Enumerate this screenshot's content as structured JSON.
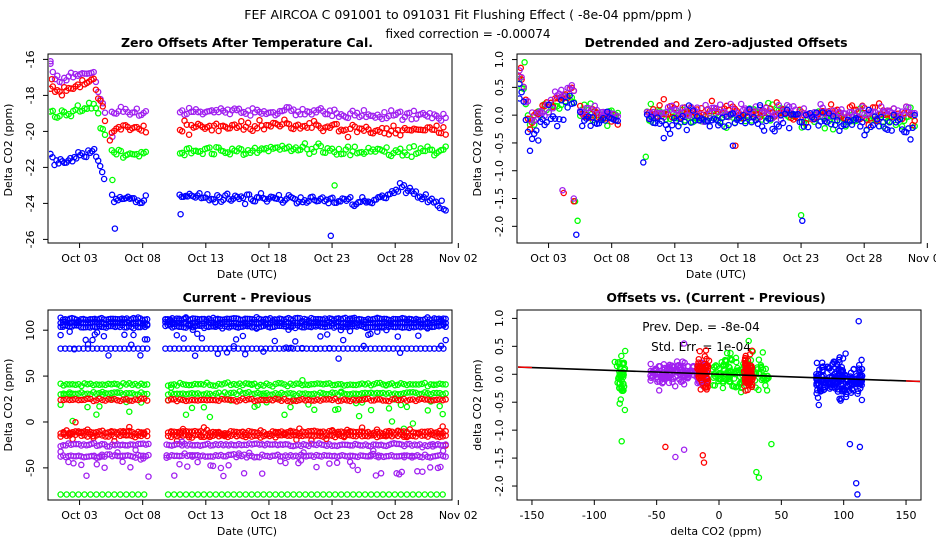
{
  "figure": {
    "title": "FEF   AIRCOA C   091001 to 091031   Fit Flushing Effect ( -8e-04 ppm/ppm )",
    "subtitle": "fixed correction = -0.00074"
  },
  "colors": {
    "blue": "#0000ff",
    "red": "#ff0000",
    "green": "#00ff00",
    "purple": "#a020f0",
    "fit_line": "#000000",
    "fit_line_ends": "#ff0000"
  },
  "chart_data": [
    {
      "id": "zero-offsets",
      "type": "scatter",
      "title": "Zero Offsets After Temperature Cal.",
      "xlabel": "Date (UTC)",
      "ylabel": "Delta CO2 (ppm)",
      "xlim": [
        0,
        32
      ],
      "ylim": [
        -26.2,
        -15.7
      ],
      "x_ticks": [
        {
          "v": 2.5,
          "label": "Oct 03"
        },
        {
          "v": 7.5,
          "label": "Oct 08"
        },
        {
          "v": 12.5,
          "label": "Oct 13"
        },
        {
          "v": 17.5,
          "label": "Oct 18"
        },
        {
          "v": 22.5,
          "label": "Oct 23"
        },
        {
          "v": 27.5,
          "label": "Oct 28"
        },
        {
          "v": 32.5,
          "label": "Nov 02"
        }
      ],
      "y_ticks": [
        {
          "v": -16,
          "label": "-16"
        },
        {
          "v": -18,
          "label": "-18"
        },
        {
          "v": -20,
          "label": "-20"
        },
        {
          "v": -22,
          "label": "-22"
        },
        {
          "v": -24,
          "label": "-24"
        },
        {
          "v": -26,
          "label": "-26"
        }
      ],
      "gaps": [
        [
          4.6,
          5.0
        ],
        [
          7.9,
          10.3
        ]
      ],
      "series": [
        {
          "name": "purple",
          "color": "#a020f0",
          "knots": [
            [
              0.2,
              -16.2
            ],
            [
              0.6,
              -17.1
            ],
            [
              1.2,
              -17.1
            ],
            [
              2,
              -16.9
            ],
            [
              3.2,
              -16.8
            ],
            [
              3.6,
              -16.7
            ],
            [
              4.6,
              -19.2
            ],
            [
              5.2,
              -19.0
            ],
            [
              8,
              -19.0
            ],
            [
              11,
              -18.9
            ],
            [
              20,
              -18.9
            ],
            [
              25,
              -19.1
            ],
            [
              30,
              -19.1
            ],
            [
              31.5,
              -19.2
            ]
          ],
          "noise": 0.12,
          "n": 175,
          "outliers": [
            [
              0.2,
              -16.1
            ],
            [
              5.1,
              -20.3
            ]
          ]
        },
        {
          "name": "red",
          "color": "#ff0000",
          "knots": [
            [
              0.2,
              -17.6
            ],
            [
              0.6,
              -17.8
            ],
            [
              1.2,
              -17.7
            ],
            [
              2,
              -17.6
            ],
            [
              3.2,
              -17.4
            ],
            [
              3.6,
              -17.2
            ],
            [
              4.6,
              -19.3
            ],
            [
              5.2,
              -19.9
            ],
            [
              8,
              -19.9
            ],
            [
              11,
              -19.8
            ],
            [
              20,
              -19.6
            ],
            [
              25,
              -19.9
            ],
            [
              30,
              -19.9
            ],
            [
              31.5,
              -20.0
            ]
          ],
          "noise": 0.15,
          "n": 175,
          "outliers": [
            [
              0.3,
              -17.1
            ],
            [
              4.9,
              -20.5
            ]
          ]
        },
        {
          "name": "green",
          "color": "#00ff00",
          "knots": [
            [
              0.2,
              -18.8
            ],
            [
              0.6,
              -19.2
            ],
            [
              1.2,
              -19.0
            ],
            [
              2,
              -18.8
            ],
            [
              3.2,
              -18.6
            ],
            [
              3.6,
              -18.5
            ],
            [
              4.6,
              -20.6
            ],
            [
              5.2,
              -21.2
            ],
            [
              8,
              -21.2
            ],
            [
              11,
              -21.1
            ],
            [
              20,
              -20.9
            ],
            [
              25,
              -21.2
            ],
            [
              30,
              -21.1
            ],
            [
              31.5,
              -21.2
            ]
          ],
          "noise": 0.15,
          "n": 175,
          "outliers": [
            [
              5.1,
              -22.7
            ],
            [
              22.7,
              -23.0
            ]
          ]
        },
        {
          "name": "blue",
          "color": "#0000ff",
          "knots": [
            [
              0.2,
              -21.2
            ],
            [
              0.6,
              -21.8
            ],
            [
              1.2,
              -21.7
            ],
            [
              2,
              -21.4
            ],
            [
              3.2,
              -21.2
            ],
            [
              3.6,
              -21.0
            ],
            [
              4.6,
              -22.9
            ],
            [
              5.2,
              -23.8
            ],
            [
              8,
              -23.8
            ],
            [
              11,
              -23.6
            ],
            [
              20,
              -23.8
            ],
            [
              22,
              -23.8
            ],
            [
              24,
              -23.9
            ],
            [
              26,
              -23.9
            ],
            [
              28,
              -23.1
            ],
            [
              30,
              -23.7
            ],
            [
              31.5,
              -24.3
            ]
          ],
          "noise": 0.12,
          "n": 200,
          "outliers": [
            [
              5.3,
              -25.4
            ],
            [
              10.5,
              -24.6
            ],
            [
              22.4,
              -25.8
            ]
          ]
        }
      ]
    },
    {
      "id": "detrended",
      "type": "scatter",
      "title": "Detrended and Zero-adjusted Offsets",
      "xlabel": "Date (UTC)",
      "ylabel": "Delta CO2 (ppm)",
      "xlim": [
        0,
        32
      ],
      "ylim": [
        -2.3,
        1.1
      ],
      "x_ticks": [
        {
          "v": 2.5,
          "label": "Oct 03"
        },
        {
          "v": 7.5,
          "label": "Oct 08"
        },
        {
          "v": 12.5,
          "label": "Oct 13"
        },
        {
          "v": 17.5,
          "label": "Oct 18"
        },
        {
          "v": 22.5,
          "label": "Oct 23"
        },
        {
          "v": 27.5,
          "label": "Oct 28"
        },
        {
          "v": 32.5,
          "label": "Nov 02"
        }
      ],
      "y_ticks": [
        {
          "v": 1.0,
          "label": "1.0"
        },
        {
          "v": 0.5,
          "label": "0.5"
        },
        {
          "v": 0.0,
          "label": "0.0"
        },
        {
          "v": -0.5,
          "label": "-0.5"
        },
        {
          "v": -1.0,
          "label": "-1.0"
        },
        {
          "v": -1.5,
          "label": "-1.5"
        },
        {
          "v": -2.0,
          "label": "-2.0"
        }
      ],
      "gaps": [
        [
          4.6,
          5.0
        ],
        [
          8.0,
          10.3
        ]
      ],
      "series": [
        {
          "name": "green",
          "color": "#00ff00",
          "knots": [
            [
              0.2,
              0.6
            ],
            [
              0.5,
              0.4
            ],
            [
              1.0,
              -0.2
            ],
            [
              2.0,
              0.1
            ],
            [
              3.5,
              0.2
            ],
            [
              4.4,
              0.3
            ],
            [
              5.2,
              0.0
            ],
            [
              8,
              0.0
            ],
            [
              11,
              0.0
            ],
            [
              14,
              -0.05
            ],
            [
              20,
              0.0
            ],
            [
              31.5,
              -0.1
            ]
          ],
          "noise": 0.08,
          "n": 190,
          "outliers": [
            [
              0.6,
              0.95
            ],
            [
              4.6,
              -1.55
            ],
            [
              4.8,
              -1.9
            ],
            [
              10.2,
              -0.75
            ],
            [
              10.6,
              0.2
            ],
            [
              22.5,
              -1.8
            ]
          ]
        },
        {
          "name": "red",
          "color": "#ff0000",
          "knots": [
            [
              0.2,
              0.7
            ],
            [
              0.5,
              0.5
            ],
            [
              1.0,
              -0.15
            ],
            [
              2.0,
              0.1
            ],
            [
              3.5,
              0.3
            ],
            [
              4.4,
              0.35
            ],
            [
              5.2,
              0.0
            ],
            [
              8,
              0.0
            ],
            [
              11,
              0.05
            ],
            [
              14,
              0.05
            ],
            [
              20,
              0.05
            ],
            [
              31.5,
              0.0
            ]
          ],
          "noise": 0.08,
          "n": 190,
          "outliers": [
            [
              0.3,
              0.85
            ],
            [
              3.7,
              -1.4
            ],
            [
              4.5,
              -1.55
            ],
            [
              17.3,
              -0.55
            ]
          ]
        },
        {
          "name": "purple",
          "color": "#a020f0",
          "knots": [
            [
              0.2,
              0.75
            ],
            [
              0.5,
              0.5
            ],
            [
              1.0,
              -0.1
            ],
            [
              2.0,
              0.1
            ],
            [
              3.5,
              0.35
            ],
            [
              4.4,
              0.45
            ],
            [
              5.2,
              0.05
            ],
            [
              8,
              0.05
            ],
            [
              11,
              0.05
            ],
            [
              14,
              0.1
            ],
            [
              20,
              0.05
            ],
            [
              31.5,
              0.05
            ]
          ],
          "noise": 0.07,
          "n": 190,
          "outliers": [
            [
              3.6,
              -1.35
            ],
            [
              4.5,
              -1.5
            ],
            [
              17.2,
              0.1
            ]
          ]
        },
        {
          "name": "blue",
          "color": "#0000ff",
          "knots": [
            [
              0.2,
              0.45
            ],
            [
              0.5,
              0.3
            ],
            [
              1.0,
              -0.5
            ],
            [
              2.0,
              -0.1
            ],
            [
              3.5,
              0.1
            ],
            [
              4.4,
              0.25
            ],
            [
              5.2,
              -0.15
            ],
            [
              8,
              -0.15
            ],
            [
              11,
              -0.2
            ],
            [
              14,
              -0.1
            ],
            [
              20,
              -0.1
            ],
            [
              31.5,
              -0.2
            ]
          ],
          "noise": 0.1,
          "n": 190,
          "outliers": [
            [
              0.2,
              0.3
            ],
            [
              4.7,
              -2.15
            ],
            [
              10.0,
              -0.85
            ],
            [
              22.6,
              -1.9
            ],
            [
              17.1,
              -0.55
            ]
          ]
        }
      ]
    },
    {
      "id": "current-previous",
      "type": "scatter",
      "title": "Current - Previous",
      "xlabel": "Date (UTC)",
      "ylabel": "Delta CO2 (ppm)",
      "xlim": [
        0,
        32
      ],
      "ylim": [
        -85,
        122
      ],
      "x_ticks": [
        {
          "v": 2.5,
          "label": "Oct 03"
        },
        {
          "v": 7.5,
          "label": "Oct 08"
        },
        {
          "v": 12.5,
          "label": "Oct 13"
        },
        {
          "v": 17.5,
          "label": "Oct 18"
        },
        {
          "v": 22.5,
          "label": "Oct 23"
        },
        {
          "v": 27.5,
          "label": "Oct 28"
        },
        {
          "v": 32.5,
          "label": "Nov 02"
        }
      ],
      "y_ticks": [
        {
          "v": 100,
          "label": "100"
        },
        {
          "v": 50,
          "label": "50"
        },
        {
          "v": 0,
          "label": "0"
        },
        {
          "v": -50,
          "label": "-50"
        }
      ],
      "gaps": [
        [
          8.0,
          9.3
        ]
      ],
      "series": [
        {
          "name": "blue",
          "color": "#0000ff",
          "lines": [
            112,
            108,
            104
          ],
          "scatter_center": 95,
          "scatter_spread": 12,
          "fixed": [
            80
          ],
          "n": 170
        },
        {
          "name": "green",
          "color": "#00ff00",
          "lines": [
            41,
            31
          ],
          "scatter_center": 18,
          "scatter_spread": 12,
          "fixed": [
            -79
          ],
          "n": 130
        },
        {
          "name": "red",
          "color": "#ff0000",
          "lines": [
            24,
            -11,
            -15
          ],
          "scatter_center": -12,
          "scatter_spread": 4,
          "fixed": [],
          "n": 130
        },
        {
          "name": "purple",
          "color": "#a020f0",
          "lines": [
            -25,
            -37
          ],
          "scatter_center": -45,
          "scatter_spread": 10,
          "fixed": [],
          "n": 150
        }
      ]
    },
    {
      "id": "offsets-vs-diff",
      "type": "scatter",
      "title": "Offsets vs. (Current - Previous)",
      "xlabel": "delta CO2 (ppm)",
      "ylabel": "delta CO2 (ppm)",
      "xlim": [
        -162,
        162
      ],
      "ylim": [
        -2.25,
        1.15
      ],
      "x_ticks": [
        {
          "v": -150,
          "label": "-150"
        },
        {
          "v": -100,
          "label": "-100"
        },
        {
          "v": -50,
          "label": "-50"
        },
        {
          "v": 0,
          "label": "0"
        },
        {
          "v": 50,
          "label": "50"
        },
        {
          "v": 100,
          "label": "100"
        },
        {
          "v": 150,
          "label": "150"
        }
      ],
      "y_ticks": [
        {
          "v": 1.0,
          "label": "1.0"
        },
        {
          "v": 0.5,
          "label": "0.5"
        },
        {
          "v": 0.0,
          "label": "0.0"
        },
        {
          "v": -0.5,
          "label": "-0.5"
        },
        {
          "v": -1.0,
          "label": "-1.0"
        },
        {
          "v": -1.5,
          "label": "-1.5"
        },
        {
          "v": -2.0,
          "label": "-2.0"
        }
      ],
      "annotations": [
        "Prev. Dep. = -8e-04",
        "Std. Err. = 1e-04"
      ],
      "fit": {
        "slope": -0.0008,
        "intercept": 0.0
      },
      "clusters": [
        {
          "color": "#00ff00",
          "xs": [
            -80,
            -78,
            -77
          ],
          "y_center": 0.0,
          "y_spread": 0.55,
          "n": 45
        },
        {
          "color": "#00ff00",
          "xs": [
            -5,
            40
          ],
          "y_center": 0.0,
          "y_spread": 0.35,
          "n": 130
        },
        {
          "color": "#a020f0",
          "xs": [
            -55,
            -10
          ],
          "y_center": 0.02,
          "y_spread": 0.22,
          "n": 150
        },
        {
          "color": "#ff0000",
          "xs": [
            -15,
            -10,
            22,
            25
          ],
          "y_center": 0.0,
          "y_spread": 0.35,
          "n": 120
        },
        {
          "color": "#0000ff",
          "xs": [
            78,
            115
          ],
          "y_center": -0.1,
          "y_spread": 0.35,
          "n": 200
        }
      ],
      "outliers": [
        {
          "color": "#00ff00",
          "x": -78,
          "y": -1.2
        },
        {
          "color": "#00ff00",
          "x": 30,
          "y": -1.75
        },
        {
          "color": "#00ff00",
          "x": 32,
          "y": -1.85
        },
        {
          "color": "#00ff00",
          "x": 42,
          "y": -1.25
        },
        {
          "color": "#ff0000",
          "x": -43,
          "y": -1.3
        },
        {
          "color": "#ff0000",
          "x": -13,
          "y": -1.45
        },
        {
          "color": "#ff0000",
          "x": -12,
          "y": -1.58
        },
        {
          "color": "#a020f0",
          "x": -35,
          "y": -1.48
        },
        {
          "color": "#a020f0",
          "x": -28,
          "y": -1.35
        },
        {
          "color": "#a020f0",
          "x": -28,
          "y": 0.55
        },
        {
          "color": "#0000ff",
          "x": 112,
          "y": 0.95
        },
        {
          "color": "#0000ff",
          "x": 110,
          "y": -1.95
        },
        {
          "color": "#0000ff",
          "x": 111,
          "y": -2.15
        },
        {
          "color": "#0000ff",
          "x": 80,
          "y": -0.55
        },
        {
          "color": "#0000ff",
          "x": 105,
          "y": -1.25
        },
        {
          "color": "#0000ff",
          "x": 113,
          "y": -1.3
        }
      ]
    }
  ]
}
